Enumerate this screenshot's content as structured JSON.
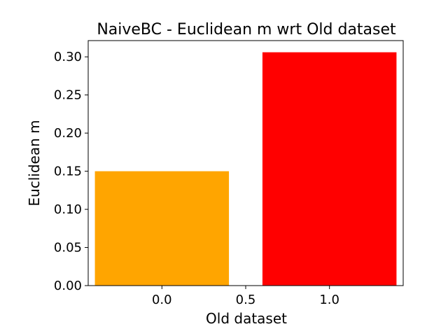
{
  "chart_data": {
    "type": "bar",
    "title": "NaiveBC - Euclidean m wrt Old dataset",
    "xlabel": "Old dataset",
    "ylabel": "Euclidean m",
    "bars": [
      {
        "x": 0.0,
        "value": 0.15,
        "color": "#ffa500"
      },
      {
        "x": 1.0,
        "value": 0.306,
        "color": "#ff0000"
      }
    ],
    "bar_width": 0.8,
    "xlim": [
      -0.44,
      1.44
    ],
    "ylim": [
      0,
      0.3213
    ],
    "xticks": [
      0.0,
      0.5,
      1.0
    ],
    "xtick_labels": [
      "0.0",
      "0.5",
      "1.0"
    ],
    "yticks": [
      0.0,
      0.05,
      0.1,
      0.15,
      0.2,
      0.25,
      0.3
    ],
    "ytick_labels": [
      "0.00",
      "0.05",
      "0.10",
      "0.15",
      "0.20",
      "0.25",
      "0.30"
    ],
    "grid": false,
    "legend": false
  }
}
